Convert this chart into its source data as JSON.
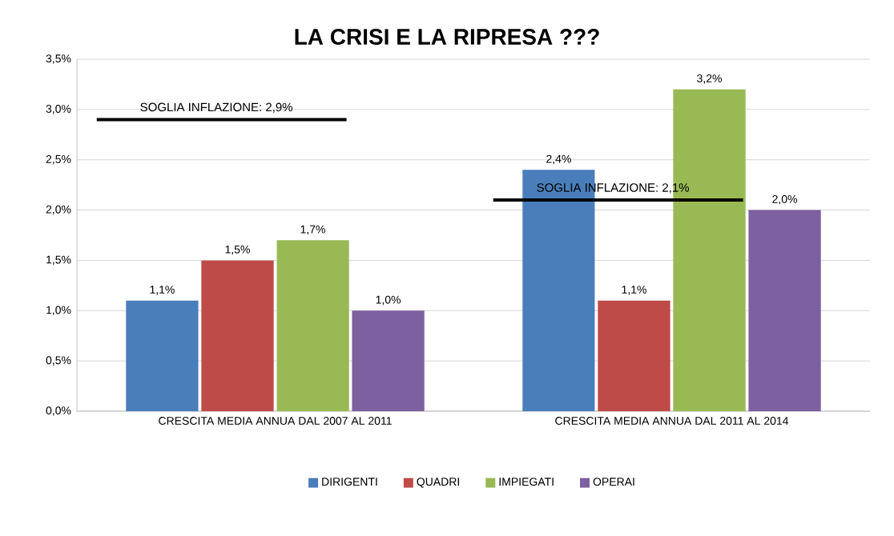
{
  "chart_data": {
    "type": "bar",
    "title": "LA CRISI E LA RIPRESA ???",
    "categories": [
      "CRESCITA MEDIA ANNUA DAL 2007 AL 2011",
      "CRESCITA MEDIA ANNUA DAL 2011 AL 2014"
    ],
    "series": [
      {
        "name": "DIRIGENTI",
        "color": "#4a7ebb",
        "values": [
          1.1,
          2.4
        ],
        "value_labels": [
          "1,1%",
          "2,4%"
        ]
      },
      {
        "name": "QUADRI",
        "color": "#be4b48",
        "values": [
          1.5,
          1.1
        ],
        "value_labels": [
          "1,5%",
          "1,1%"
        ]
      },
      {
        "name": "IMPIEGATI",
        "color": "#98b954",
        "values": [
          1.7,
          3.2
        ],
        "value_labels": [
          "1,7%",
          "3,2%"
        ]
      },
      {
        "name": "OPERAI",
        "color": "#7d60a0",
        "values": [
          1.0,
          2.0
        ],
        "value_labels": [
          "1,0%",
          "2,0%"
        ]
      }
    ],
    "ylim": [
      0,
      3.5
    ],
    "yticks": [
      {
        "value": 0,
        "label": "0,0%"
      },
      {
        "value": 0.5,
        "label": "0,5%"
      },
      {
        "value": 1,
        "label": "1,0%"
      },
      {
        "value": 1.5,
        "label": "1,5%"
      },
      {
        "value": 2,
        "label": "2,0%"
      },
      {
        "value": 2.5,
        "label": "2,5%"
      },
      {
        "value": 3,
        "label": "3,0%"
      },
      {
        "value": 3.5,
        "label": "3,5%"
      }
    ],
    "ref_lines": [
      {
        "axis": "y",
        "value": 2.9,
        "label": "SOGLIA INFLAZIONE: 2,9%",
        "color": "#000000"
      },
      {
        "axis": "y",
        "value": 2.1,
        "label": "SOGLIA INFLAZIONE: 2,1%",
        "color": "#000000"
      }
    ],
    "grid": "y",
    "legend": "bottom"
  }
}
